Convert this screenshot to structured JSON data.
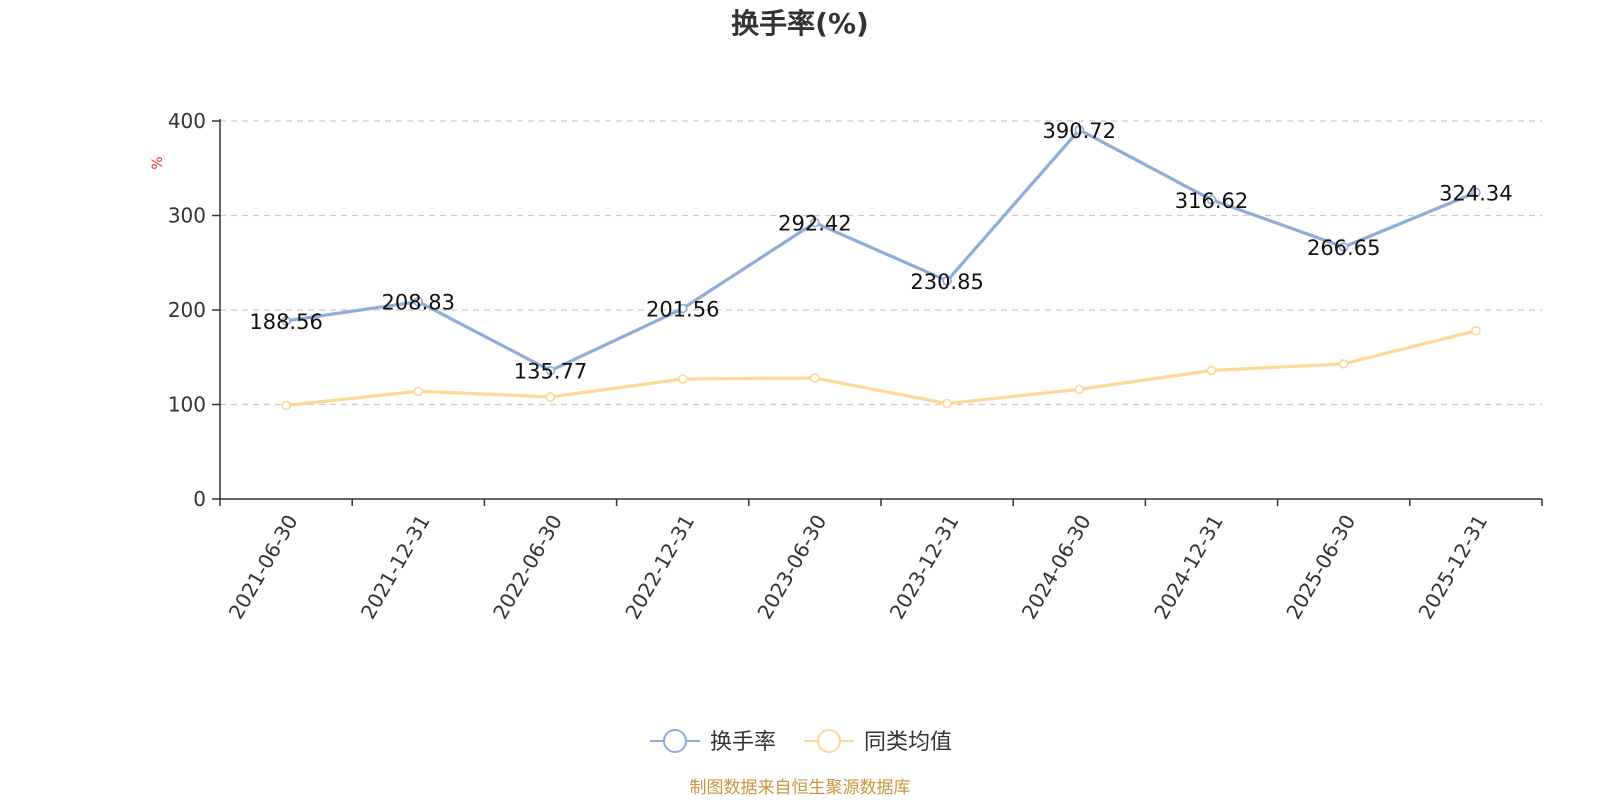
{
  "chart_data": {
    "type": "line",
    "title": "换手率(%)",
    "ylabel": "%",
    "categories": [
      "2021-06-30",
      "2021-12-31",
      "2022-06-30",
      "2022-12-31",
      "2023-06-30",
      "2023-12-31",
      "2024-06-30",
      "2024-12-31",
      "2025-06-30",
      "2025-12-31"
    ],
    "ylim": [
      0,
      400
    ],
    "yticks": [
      0,
      100,
      200,
      300,
      400
    ],
    "grid": true,
    "legend_position": "bottom",
    "series": [
      {
        "name": "换手率",
        "color": "#8eadd8",
        "show_labels": true,
        "values": [
          188.56,
          208.83,
          135.77,
          201.56,
          292.42,
          230.85,
          390.72,
          316.62,
          266.65,
          324.34
        ]
      },
      {
        "name": "同类均值",
        "color": "#fdd898",
        "show_labels": false,
        "values": [
          99,
          114,
          108,
          127,
          128,
          101,
          116,
          136,
          143,
          178
        ]
      }
    ],
    "source": "制图数据来自恒生聚源数据库"
  }
}
